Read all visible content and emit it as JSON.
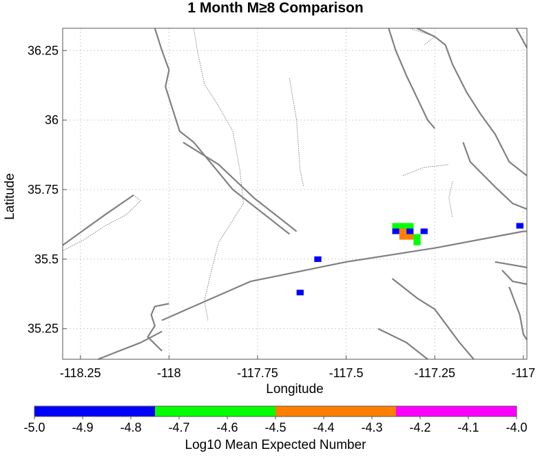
{
  "title": "1 Month M≥8 Comparison",
  "map": {
    "xlabel": "Longitude",
    "ylabel": "Latitude",
    "xlim": [
      -118.3,
      -116.99
    ],
    "ylim": [
      35.14,
      36.33
    ],
    "xticks": [
      {
        "value": -118.25,
        "label": "-118.25"
      },
      {
        "value": -118.0,
        "label": "-118"
      },
      {
        "value": -117.75,
        "label": "-117.75"
      },
      {
        "value": -117.5,
        "label": "-117.5"
      },
      {
        "value": -117.25,
        "label": "-117.25"
      },
      {
        "value": -117.0,
        "label": "-117"
      }
    ],
    "yticks": [
      {
        "value": 35.25,
        "label": "35.25"
      },
      {
        "value": 35.5,
        "label": "35.5"
      },
      {
        "value": 35.75,
        "label": "35.75"
      },
      {
        "value": 36.0,
        "label": "36"
      },
      {
        "value": 36.25,
        "label": "36.25"
      }
    ],
    "grid": true,
    "fault_color": "#808080"
  },
  "chart_data": {
    "type": "heatmap",
    "cell_size_deg": [
      0.02,
      0.02
    ],
    "cells": [
      {
        "lon": -117.36,
        "lat": 35.62,
        "value": -4.7,
        "color": "#00ff00"
      },
      {
        "lon": -117.34,
        "lat": 35.62,
        "value": -4.7,
        "color": "#00ff00"
      },
      {
        "lon": -117.32,
        "lat": 35.62,
        "value": -4.7,
        "color": "#00ff00"
      },
      {
        "lon": -117.36,
        "lat": 35.6,
        "value": -4.9,
        "color": "#0000ff"
      },
      {
        "lon": -117.34,
        "lat": 35.6,
        "value": -4.4,
        "color": "#ff8000"
      },
      {
        "lon": -117.32,
        "lat": 35.6,
        "value": -4.9,
        "color": "#0000ff"
      },
      {
        "lon": -117.28,
        "lat": 35.6,
        "value": -4.9,
        "color": "#0000ff"
      },
      {
        "lon": -117.34,
        "lat": 35.58,
        "value": -4.4,
        "color": "#ff8000"
      },
      {
        "lon": -117.32,
        "lat": 35.58,
        "value": -4.4,
        "color": "#ff8000"
      },
      {
        "lon": -117.3,
        "lat": 35.58,
        "value": -4.7,
        "color": "#00ff00"
      },
      {
        "lon": -117.3,
        "lat": 35.56,
        "value": -4.7,
        "color": "#00ff00"
      },
      {
        "lon": -117.58,
        "lat": 35.5,
        "value": -4.9,
        "color": "#0000ff"
      },
      {
        "lon": -117.63,
        "lat": 35.38,
        "value": -4.9,
        "color": "#0000ff"
      },
      {
        "lon": -117.01,
        "lat": 35.62,
        "value": -4.9,
        "color": "#0000ff"
      }
    ]
  },
  "faults": [
    {
      "style": "solid",
      "points": [
        [
          -118.02,
          35.28
        ],
        [
          -117.77,
          35.42
        ],
        [
          -117.5,
          35.49
        ],
        [
          -117.25,
          35.54
        ],
        [
          -117.0,
          35.6
        ],
        [
          -116.99,
          35.6
        ]
      ]
    },
    {
      "style": "solid",
      "points": [
        [
          -118.3,
          35.55
        ],
        [
          -118.18,
          35.66
        ],
        [
          -118.1,
          35.73
        ]
      ]
    },
    {
      "style": "solid",
      "points": [
        [
          -118.04,
          36.33
        ],
        [
          -118.02,
          36.25
        ],
        [
          -118.0,
          36.18
        ],
        [
          -118.01,
          36.12
        ],
        [
          -117.97,
          35.96
        ],
        [
          -117.93,
          35.92
        ],
        [
          -117.82,
          35.75
        ],
        [
          -117.72,
          35.65
        ],
        [
          -117.66,
          35.59
        ]
      ]
    },
    {
      "style": "solid",
      "points": [
        [
          -117.96,
          35.92
        ],
        [
          -117.86,
          35.84
        ],
        [
          -117.76,
          35.72
        ],
        [
          -117.64,
          35.6
        ]
      ]
    },
    {
      "style": "solid",
      "points": [
        [
          -118.0,
          35.34
        ],
        [
          -118.04,
          35.33
        ],
        [
          -118.05,
          35.3
        ],
        [
          -118.04,
          35.26
        ],
        [
          -118.06,
          35.22
        ],
        [
          -118.02,
          35.17
        ]
      ]
    },
    {
      "style": "solid",
      "points": [
        [
          -118.02,
          35.24
        ],
        [
          -118.08,
          35.2
        ],
        [
          -118.16,
          35.16
        ],
        [
          -118.2,
          35.14
        ]
      ]
    },
    {
      "style": "solid",
      "points": [
        [
          -117.38,
          36.33
        ],
        [
          -117.36,
          36.25
        ],
        [
          -117.33,
          36.16
        ],
        [
          -117.3,
          36.08
        ],
        [
          -117.27,
          36.0
        ],
        [
          -117.25,
          35.97
        ]
      ]
    },
    {
      "style": "solid",
      "points": [
        [
          -117.3,
          36.33
        ],
        [
          -117.25,
          36.3
        ],
        [
          -117.22,
          36.27
        ],
        [
          -117.2,
          36.2
        ],
        [
          -117.16,
          36.1
        ],
        [
          -117.12,
          36.02
        ],
        [
          -117.08,
          35.95
        ],
        [
          -117.04,
          35.85
        ],
        [
          -116.99,
          35.8
        ]
      ]
    },
    {
      "style": "solid",
      "points": [
        [
          -117.17,
          35.92
        ],
        [
          -117.15,
          35.85
        ],
        [
          -117.08,
          35.76
        ],
        [
          -117.03,
          35.7
        ],
        [
          -116.99,
          35.68
        ]
      ]
    },
    {
      "style": "solid",
      "points": [
        [
          -117.37,
          35.43
        ],
        [
          -117.3,
          35.36
        ],
        [
          -117.25,
          35.32
        ],
        [
          -117.18,
          35.2
        ],
        [
          -117.14,
          35.14
        ]
      ]
    },
    {
      "style": "solid",
      "points": [
        [
          -117.41,
          35.25
        ],
        [
          -117.33,
          35.2
        ],
        [
          -117.27,
          35.14
        ]
      ]
    },
    {
      "style": "solid",
      "points": [
        [
          -117.08,
          35.49
        ],
        [
          -116.99,
          35.47
        ]
      ]
    },
    {
      "style": "solid",
      "points": [
        [
          -117.06,
          35.46
        ],
        [
          -117.03,
          35.42
        ],
        [
          -116.99,
          35.41
        ]
      ]
    },
    {
      "style": "solid",
      "points": [
        [
          -117.04,
          35.4
        ],
        [
          -117.01,
          35.3
        ],
        [
          -117.0,
          35.23
        ],
        [
          -116.99,
          35.21
        ]
      ]
    },
    {
      "style": "solid",
      "points": [
        [
          -117.02,
          36.33
        ],
        [
          -116.99,
          36.26
        ]
      ]
    },
    {
      "style": "dotted",
      "points": [
        [
          -118.3,
          35.53
        ],
        [
          -118.24,
          35.57
        ],
        [
          -118.18,
          35.62
        ],
        [
          -118.12,
          35.66
        ],
        [
          -118.08,
          35.71
        ],
        [
          -118.1,
          35.73
        ]
      ]
    },
    {
      "style": "dotted",
      "points": [
        [
          -117.93,
          36.33
        ],
        [
          -117.92,
          36.25
        ],
        [
          -117.9,
          36.13
        ],
        [
          -117.86,
          36.05
        ],
        [
          -117.82,
          35.96
        ],
        [
          -117.8,
          35.82
        ],
        [
          -117.79,
          35.7
        ],
        [
          -117.82,
          35.64
        ],
        [
          -117.86,
          35.56
        ],
        [
          -117.88,
          35.46
        ],
        [
          -117.9,
          35.35
        ],
        [
          -117.89,
          35.28
        ]
      ]
    },
    {
      "style": "dotted",
      "points": [
        [
          -117.66,
          36.15
        ],
        [
          -117.64,
          36.0
        ],
        [
          -117.63,
          35.82
        ],
        [
          -117.62,
          35.76
        ]
      ]
    },
    {
      "style": "dotted",
      "points": [
        [
          -117.2,
          35.78
        ],
        [
          -117.21,
          35.72
        ],
        [
          -117.2,
          35.65
        ]
      ]
    },
    {
      "style": "dotted",
      "points": [
        [
          -117.34,
          35.8
        ],
        [
          -117.28,
          35.83
        ],
        [
          -117.21,
          35.84
        ]
      ]
    },
    {
      "style": "dotted",
      "points": [
        [
          -117.32,
          36.33
        ],
        [
          -117.25,
          36.3
        ],
        [
          -117.28,
          36.27
        ]
      ]
    }
  ],
  "colorbar": {
    "label": "Log10 Mean Expected Number",
    "segments": [
      {
        "from": -5.0,
        "to": -4.75,
        "color": "#0000ff"
      },
      {
        "from": -4.75,
        "to": -4.5,
        "color": "#00ff00"
      },
      {
        "from": -4.5,
        "to": -4.25,
        "color": "#ff8000"
      },
      {
        "from": -4.25,
        "to": -4.0,
        "color": "#ff00ff"
      }
    ],
    "ticks": [
      {
        "value": -5.0,
        "label": "-5.0"
      },
      {
        "value": -4.9,
        "label": "-4.9"
      },
      {
        "value": -4.8,
        "label": "-4.8"
      },
      {
        "value": -4.7,
        "label": "-4.7"
      },
      {
        "value": -4.6,
        "label": "-4.6"
      },
      {
        "value": -4.5,
        "label": "-4.5"
      },
      {
        "value": -4.4,
        "label": "-4.4"
      },
      {
        "value": -4.3,
        "label": "-4.3"
      },
      {
        "value": -4.2,
        "label": "-4.2"
      },
      {
        "value": -4.1,
        "label": "-4.1"
      },
      {
        "value": -4.0,
        "label": "-4.0"
      }
    ]
  }
}
